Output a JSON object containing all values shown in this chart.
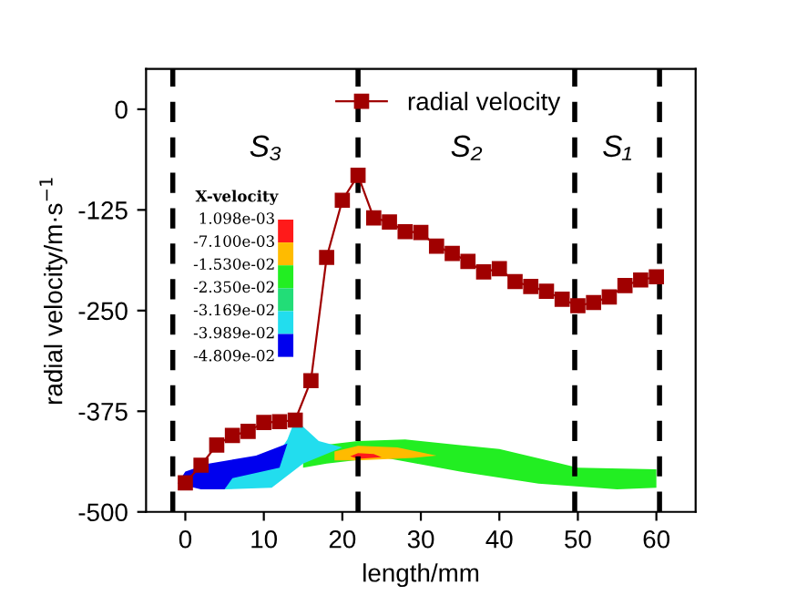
{
  "chart_data": {
    "type": "line",
    "xlabel": "length/mm",
    "ylabel": "radial velocity/m·s$^{−1}$",
    "x": [
      0,
      2,
      4,
      6,
      8,
      10,
      12,
      14,
      16,
      18,
      20,
      22,
      24,
      26,
      28,
      30,
      32,
      34,
      36,
      38,
      40,
      42,
      44,
      46,
      48,
      50,
      52,
      54,
      56,
      58,
      60
    ],
    "series": [
      {
        "name": "radial velocity",
        "color": "#a00000",
        "values": [
          -464,
          -442,
          -417,
          -405,
          -400,
          -389,
          -388,
          -386,
          -337,
          -184,
          -113,
          -82,
          -135,
          -140,
          -152,
          -153,
          -170,
          -179,
          -189,
          -202,
          -198,
          -214,
          -220,
          -226,
          -236,
          -244,
          -240,
          -233,
          -219,
          -212,
          -208
        ]
      }
    ],
    "xlim": [
      -5,
      65
    ],
    "xticks": [
      0,
      10,
      20,
      30,
      40,
      50,
      60
    ],
    "ylim": [
      -500,
      50
    ],
    "yticks": [
      -500,
      -375,
      -250,
      -125,
      0
    ],
    "marker": "square",
    "line_style": "solid",
    "legend": "top",
    "grid": false,
    "ref_lines": [
      {
        "axis": "x",
        "value": -1.6,
        "color": "#000000",
        "line_style": "dashed"
      },
      {
        "axis": "x",
        "value": 22,
        "color": "#000000",
        "line_style": "dashed"
      },
      {
        "axis": "x",
        "value": 49.6,
        "color": "#000000",
        "line_style": "dashed"
      },
      {
        "axis": "x",
        "value": 60.4,
        "color": "#000000",
        "line_style": "dashed"
      }
    ],
    "annotations": [
      "S₃",
      "S₂",
      "S₁",
      "X-velocity",
      "1.098e-03",
      "-7.100e-03",
      "-1.530e-02",
      "-2.350e-02",
      "-3.169e-02",
      "-3.989e-02",
      "-4.809e-02"
    ]
  }
}
